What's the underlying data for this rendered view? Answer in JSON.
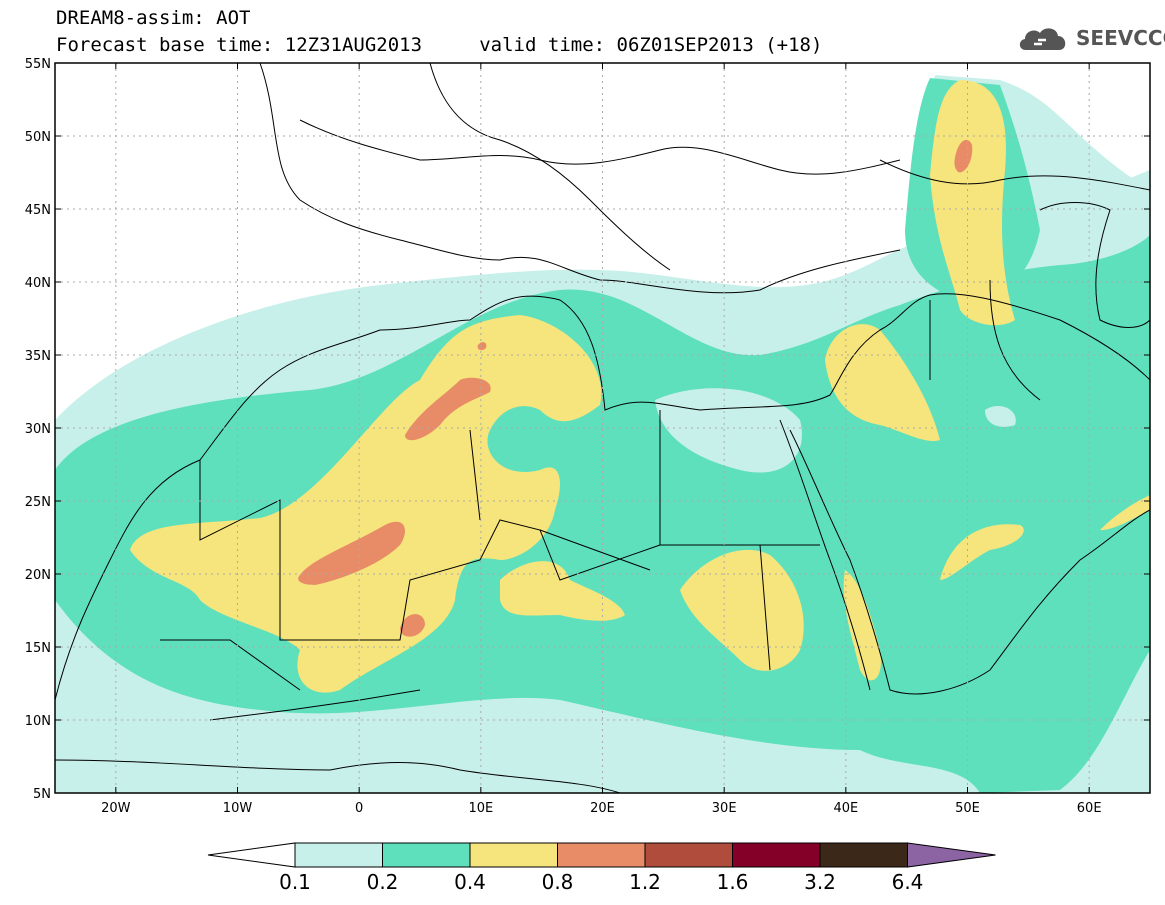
{
  "title": {
    "line1": "DREAM8-assim: AOT",
    "line2": "Forecast base time: 12Z31AUG2013     valid time: 06Z01SEP2013 (+18)"
  },
  "logo": {
    "text": "SEEVCCC",
    "icon": "cloud-icon"
  },
  "map": {
    "lon_range": [
      -25,
      65
    ],
    "lat_range": [
      5,
      55
    ],
    "lon_ticks": [
      {
        "value": -20,
        "label": "20W"
      },
      {
        "value": -10,
        "label": "10W"
      },
      {
        "value": 0,
        "label": "0"
      },
      {
        "value": 10,
        "label": "10E"
      },
      {
        "value": 20,
        "label": "20E"
      },
      {
        "value": 30,
        "label": "30E"
      },
      {
        "value": 40,
        "label": "40E"
      },
      {
        "value": 50,
        "label": "50E"
      },
      {
        "value": 60,
        "label": "60E"
      }
    ],
    "lat_ticks": [
      {
        "value": 55,
        "label": "55N"
      },
      {
        "value": 50,
        "label": "50N"
      },
      {
        "value": 45,
        "label": "45N"
      },
      {
        "value": 40,
        "label": "40N"
      },
      {
        "value": 35,
        "label": "35N"
      },
      {
        "value": 30,
        "label": "30N"
      },
      {
        "value": 25,
        "label": "25N"
      },
      {
        "value": 20,
        "label": "20N"
      },
      {
        "value": 15,
        "label": "15N"
      },
      {
        "value": 10,
        "label": "10N"
      },
      {
        "value": 5,
        "label": "5N"
      }
    ],
    "grid": "dotted"
  },
  "colorbar": {
    "labels": [
      "0.1",
      "0.2",
      "0.4",
      "0.8",
      "1.2",
      "1.6",
      "3.2",
      "6.4"
    ],
    "colors": [
      "#ffffff",
      "#c8f0ea",
      "#5ee0bc",
      "#f6e47c",
      "#e88c68",
      "#b04c3c",
      "#840028",
      "#3c2818",
      "#8c64a4"
    ]
  }
}
